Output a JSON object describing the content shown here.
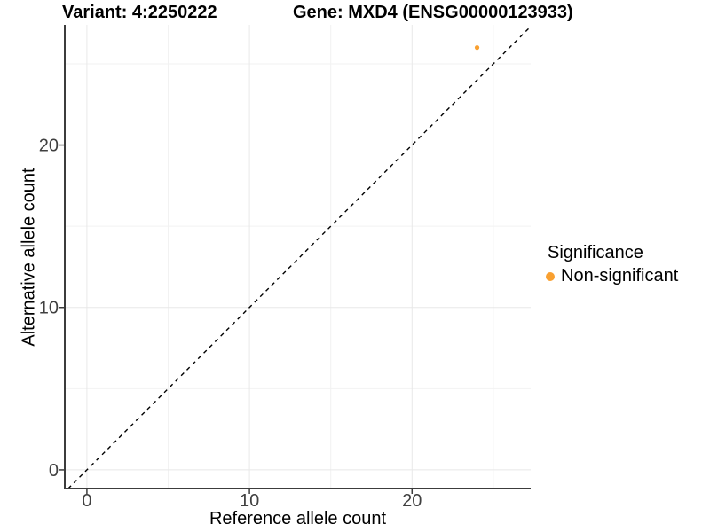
{
  "header": {
    "variant_title": "Variant: 4:2250222",
    "gene_title": "Gene: MXD4 (ENSG00000123933)"
  },
  "legend": {
    "title": "Significance",
    "items": [
      {
        "label": "Non-significant",
        "color": "#F9A030"
      }
    ]
  },
  "chart_data": {
    "type": "scatter",
    "title": "Variant: 4:2250222 — Gene: MXD4 (ENSG00000123933)",
    "xlabel": "Reference allele count",
    "ylabel": "Alternative allele count",
    "xlim": [
      -1.36,
      27.3
    ],
    "ylim": [
      -1.15,
      27.4
    ],
    "x_major_ticks": [
      0,
      10,
      20
    ],
    "x_minor_ticks": [
      5,
      15,
      25
    ],
    "y_major_ticks": [
      0,
      10,
      20
    ],
    "y_minor_ticks": [
      5,
      15,
      25
    ],
    "grid": {
      "on": true,
      "major_color": "#e8e8e8",
      "minor_color": "#f2f2f2"
    },
    "identity_line": {
      "dashed": true,
      "color": "#000000",
      "slope": 1,
      "intercept": 0
    },
    "series": [
      {
        "name": "Non-significant",
        "color": "#F9A030",
        "points": [
          {
            "x": 24,
            "y": 26
          }
        ]
      }
    ],
    "legend_position": "right",
    "axis_color": "#3c3c3c",
    "tick_label_color": "#404040"
  }
}
